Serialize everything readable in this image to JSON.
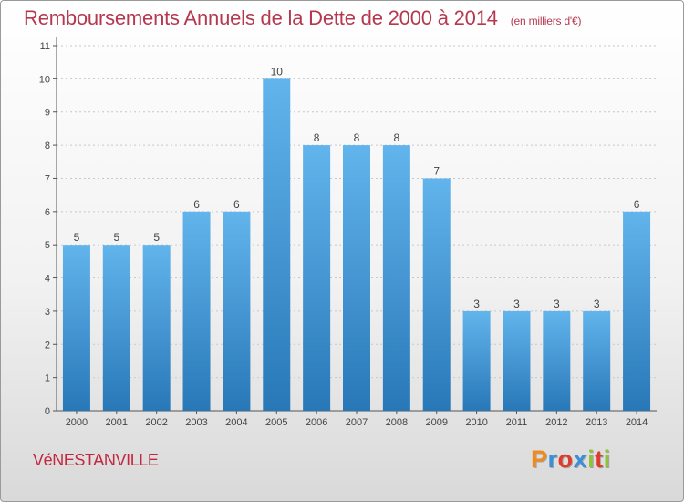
{
  "header": {
    "title": "Remboursements Annuels de la Dette de 2000 à 2014",
    "subtitle": "(en milliers d'€)"
  },
  "footer": {
    "commune": "VéNESTANVILLE",
    "logo_text": "Proxiti"
  },
  "colors": {
    "title": "#b5384f",
    "bar_light": "#62b4ec",
    "bar_dark": "#2878b8",
    "logo": [
      "#f08a1c",
      "#3a8fd8",
      "#e23a2a",
      "#3a8fd8",
      "#8fc43a",
      "#e23a2a",
      "#8fc43a"
    ]
  },
  "chart_data": {
    "type": "bar",
    "categories": [
      "2000",
      "2001",
      "2002",
      "2003",
      "2004",
      "2005",
      "2006",
      "2007",
      "2008",
      "2009",
      "2010",
      "2011",
      "2012",
      "2013",
      "2014"
    ],
    "values": [
      5,
      5,
      5,
      6,
      6,
      10,
      8,
      8,
      8,
      7,
      3,
      3,
      3,
      3,
      6
    ],
    "data_labels": [
      "5",
      "5",
      "5",
      "6",
      "6",
      "10",
      "8",
      "8",
      "8",
      "7",
      "3",
      "3",
      "3",
      "3",
      "6"
    ],
    "ylim": [
      0,
      11
    ],
    "yticks": [
      0,
      1,
      2,
      3,
      4,
      5,
      6,
      7,
      8,
      9,
      10,
      11
    ],
    "grid": true
  }
}
